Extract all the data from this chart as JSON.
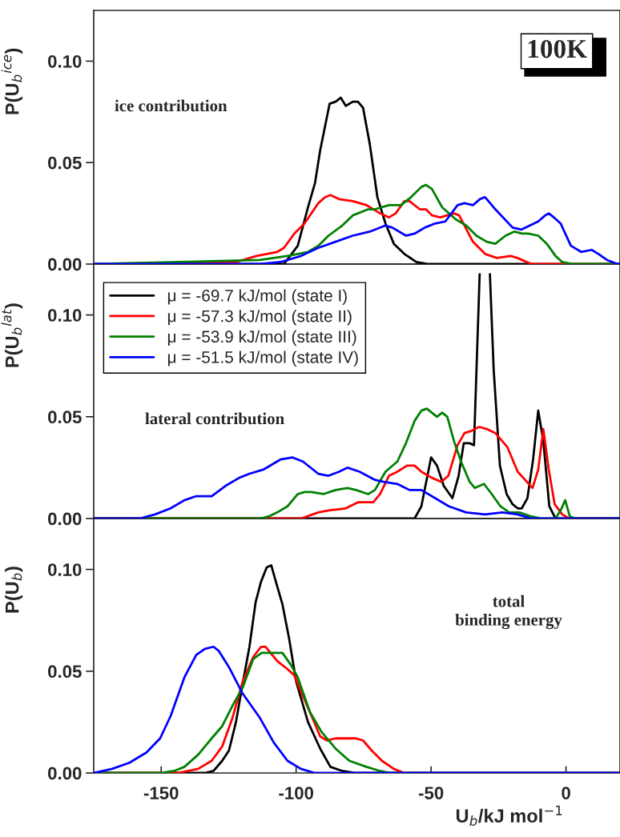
{
  "chart_data": [
    {
      "type": "line",
      "title": "100K",
      "ylabel": "P(U$_{b}$$^{ice}$)",
      "annotations": [
        "ice contribution"
      ],
      "legend": false,
      "tick_labels": "y",
      "xlim": [
        -175,
        20
      ],
      "ylim": [
        0,
        0.125
      ],
      "yticks": [
        {
          "value": 0,
          "label": "0.00"
        },
        {
          "value": 0.05,
          "label": "0.05"
        },
        {
          "value": 0.1,
          "label": "0.10"
        }
      ],
      "series": [
        {
          "color": "#000000",
          "x": [
            -175,
            -110,
            -104.5,
            -99.4,
            -95.6,
            -93.0,
            -91.1,
            -87.6,
            -85.4,
            -83.5,
            -81.6,
            -79.0,
            -77.1,
            -75.2,
            -72.7,
            -69.9,
            -66.9,
            -63.8,
            -59.9,
            -55.5,
            -51.0,
            -39.6,
            20
          ],
          "values": [
            0,
            0,
            0.0,
            0.009,
            0.028,
            0.04,
            0.056,
            0.079,
            0.08,
            0.082,
            0.078,
            0.08,
            0.08,
            0.077,
            0.059,
            0.033,
            0.02,
            0.01,
            0.005,
            0.001,
            0.0,
            0,
            0
          ]
        },
        {
          "color": "#ff0000",
          "x": [
            -175,
            -122.3,
            -114.7,
            -107.0,
            -104.5,
            -100.7,
            -96.9,
            -91.8,
            -89.2,
            -87.3,
            -84.1,
            -79.0,
            -73.9,
            -68.9,
            -65.6,
            -63.1,
            -59.9,
            -58.0,
            -54.2,
            -51.9,
            -49.7,
            -46.6,
            -41.5,
            -39.6,
            -34.5,
            -30.0,
            -25.6,
            -20.5,
            -18.0,
            -12.8,
            -7.7,
            20
          ],
          "values": [
            0,
            0.001,
            0.004,
            0.006,
            0.008,
            0.015,
            0.02,
            0.03,
            0.033,
            0.034,
            0.032,
            0.031,
            0.029,
            0.025,
            0.023,
            0.025,
            0.031,
            0.031,
            0.027,
            0.027,
            0.024,
            0.023,
            0.025,
            0.024,
            0.011,
            0.005,
            0.003,
            0.004,
            0.003,
            0,
            0,
            0
          ]
        },
        {
          "color": "#008000",
          "x": [
            -175,
            -113.4,
            -103.2,
            -95.6,
            -91.8,
            -88.0,
            -82.9,
            -79.0,
            -73.3,
            -70.8,
            -65.6,
            -61.2,
            -57.4,
            -53.6,
            -51.9,
            -49.7,
            -45.9,
            -40.8,
            -37.0,
            -33.2,
            -29.4,
            -26.2,
            -22.4,
            -19.2,
            -16.3,
            -14.1,
            -10.3,
            -7.1,
            -3.9,
            -1.4,
            2.5,
            20
          ],
          "values": [
            0,
            0.002,
            0.004,
            0.006,
            0.009,
            0.014,
            0.019,
            0.024,
            0.027,
            0.027,
            0.029,
            0.029,
            0.033,
            0.038,
            0.039,
            0.037,
            0.028,
            0.022,
            0.019,
            0.014,
            0.011,
            0.01,
            0.014,
            0.016,
            0.015,
            0.015,
            0.014,
            0.01,
            0.004,
            0.001,
            0,
            0
          ]
        },
        {
          "color": "#0000ff",
          "x": [
            -175,
            -113.4,
            -105.8,
            -98.2,
            -91.8,
            -85.4,
            -79.0,
            -72.7,
            -66.9,
            -64.4,
            -59.3,
            -56.1,
            -52.3,
            -48.5,
            -44.7,
            -40.2,
            -37.6,
            -34.5,
            -31.9,
            -30.0,
            -26.2,
            -19.8,
            -16.6,
            -10.3,
            -7.7,
            -6.4,
            -4.5,
            -2.0,
            1.8,
            5.6,
            9.5,
            12.0,
            15.2,
            19.0,
            20
          ],
          "values": [
            0,
            0,
            0.001,
            0.004,
            0.008,
            0.011,
            0.014,
            0.016,
            0.019,
            0.018,
            0.014,
            0.015,
            0.018,
            0.02,
            0.021,
            0.029,
            0.03,
            0.029,
            0.032,
            0.033,
            0.027,
            0.018,
            0.017,
            0.021,
            0.024,
            0.025,
            0.023,
            0.02,
            0.009,
            0.006,
            0.007,
            0.005,
            0.002,
            0,
            0
          ]
        }
      ]
    },
    {
      "type": "line",
      "ylabel": "P(U$_{b}$$^{lat}$)",
      "annotations": [
        "lateral contribution"
      ],
      "legend": "top left",
      "tick_labels": "y",
      "xlim": [
        -175,
        20
      ],
      "ylim": [
        0,
        0.125
      ],
      "yticks": [
        {
          "value": 0,
          "label": "0.00"
        },
        {
          "value": 0.05,
          "label": "0.05"
        },
        {
          "value": 0.1,
          "label": "0.10"
        }
      ],
      "series": [
        {
          "name": "μ = -69.7 kJ/mol (state I)",
          "color": "#000000",
          "x": [
            -175,
            -56.1,
            -53.6,
            -50.0,
            -47.8,
            -45.3,
            -42.1,
            -39.8,
            -37.9,
            -35.7,
            -34.1,
            -32.0,
            -30.0,
            -28.2,
            -26.8,
            -24.5,
            -22.0,
            -19.8,
            -17.9,
            -16.4,
            -14.3,
            -12.2,
            -10.3,
            -8.4,
            -6.2,
            -3.9,
            20
          ],
          "values": [
            0,
            0,
            0.006,
            0.03,
            0.026,
            0.016,
            0.01,
            0.021,
            0.037,
            0.037,
            0.036,
            0.12,
            null,
            0.12,
            0.073,
            0.026,
            0.012,
            0.007,
            0.005,
            0.005,
            0.01,
            0.029,
            0.053,
            0.038,
            0.006,
            0,
            0
          ]
        },
        {
          "name": "μ = -57.3 kJ/mol (state II)",
          "color": "#ff0000",
          "x": [
            -175,
            -98.2,
            -91.8,
            -88.0,
            -81.6,
            -77.1,
            -73.9,
            -71.4,
            -68.9,
            -65.6,
            -62.5,
            -58.9,
            -56.1,
            -53.6,
            -49.7,
            -46.2,
            -43.6,
            -40.2,
            -37.6,
            -35.1,
            -32.2,
            -29.4,
            -26.2,
            -21.7,
            -17.9,
            -12.4,
            -10.3,
            -8.4,
            -6.4,
            -4.2,
            -1.4,
            1.2,
            3.7,
            20
          ],
          "values": [
            0,
            0.0,
            0.003,
            0.004,
            0.005,
            0.008,
            0.008,
            0.008,
            0.012,
            0.021,
            0.023,
            0.026,
            0.026,
            0.023,
            0.02,
            0.018,
            0.021,
            0.036,
            0.042,
            0.043,
            0.045,
            0.044,
            0.042,
            0.035,
            0.023,
            0.015,
            0.024,
            0.044,
            0.024,
            0.007,
            0.002,
            0.0,
            0,
            0
          ]
        },
        {
          "name": "μ = -53.9 kJ/mol (state III)",
          "color": "#008000",
          "x": [
            -175,
            -113.4,
            -110.2,
            -107.0,
            -103.2,
            -99.4,
            -96.9,
            -94.3,
            -89.9,
            -85.4,
            -81.0,
            -77.8,
            -73.3,
            -70.8,
            -66.9,
            -62.5,
            -59.3,
            -56.1,
            -53.6,
            -51.6,
            -47.8,
            -45.9,
            -44.0,
            -41.5,
            -38.9,
            -35.7,
            -33.8,
            -30.4,
            -27.5,
            -24.3,
            -21.1,
            -17.3,
            -12.8,
            -9.0,
            -3.9,
            -2.0,
            -0.3,
            1.4,
            3.7,
            20
          ],
          "values": [
            0,
            0,
            0.001,
            0.003,
            0.006,
            0.012,
            0.013,
            0.013,
            0.012,
            0.014,
            0.015,
            0.014,
            0.012,
            0.014,
            0.023,
            0.028,
            0.037,
            0.048,
            0.053,
            0.054,
            0.05,
            0.052,
            0.05,
            0.038,
            0.028,
            0.018,
            0.015,
            0.017,
            0.012,
            0.006,
            0.003,
            0.003,
            0.001,
            0,
            0,
            0.004,
            0.009,
            0.001,
            0,
            0
          ]
        },
        {
          "name": "μ = -51.5 kJ/mol (state IV)",
          "color": "#0000ff",
          "x": [
            -175,
            -163.1,
            -158.0,
            -152.3,
            -146.5,
            -141.4,
            -137.0,
            -131.3,
            -126.2,
            -121.1,
            -117.3,
            -112.2,
            -105.8,
            -101.3,
            -97.5,
            -91.8,
            -88.0,
            -84.1,
            -81.0,
            -76.5,
            -70.8,
            -67.6,
            -62.5,
            -58.0,
            -53.6,
            -48.5,
            -43.4,
            -37.0,
            -30.0,
            -23.6,
            -17.9,
            -12.8,
            -7.7,
            20
          ],
          "values": [
            0,
            0,
            0.0,
            0.002,
            0.005,
            0.009,
            0.011,
            0.011,
            0.016,
            0.02,
            0.022,
            0.024,
            0.029,
            0.03,
            0.028,
            0.022,
            0.021,
            0.023,
            0.025,
            0.023,
            0.019,
            0.018,
            0.017,
            0.014,
            0.014,
            0.01,
            0.006,
            0.003,
            0.002,
            0.003,
            0.002,
            0.0,
            0,
            0
          ]
        }
      ]
    },
    {
      "type": "line",
      "xlabel": "U$_{b}$/kJ mol$^{−1}$",
      "ylabel": "P(U$_{b}$)",
      "annotations": [
        "total\nbinding energy"
      ],
      "legend": false,
      "xlim": [
        -175,
        20
      ],
      "xticks": [
        -150,
        -100,
        -50,
        0
      ],
      "ylim": [
        0,
        0.125
      ],
      "yticks": [
        {
          "value": 0,
          "label": "0.00"
        },
        {
          "value": 0.05,
          "label": "0.05"
        },
        {
          "value": 0.1,
          "label": "0.10"
        }
      ],
      "series": [
        {
          "color": "#000000",
          "x": [
            -175,
            -133.8,
            -130.6,
            -127.4,
            -124.9,
            -122.3,
            -119.8,
            -117.3,
            -115.0,
            -113.0,
            -110.9,
            -109.2,
            -107.3,
            -105.1,
            -102.6,
            -100.0,
            -95.6,
            -91.1,
            -87.3,
            -82.9,
            -77.8,
            20
          ],
          "values": [
            0,
            0,
            0.001,
            0.006,
            0.011,
            0.025,
            0.044,
            0.062,
            0.084,
            0.094,
            0.101,
            0.102,
            0.093,
            0.083,
            0.066,
            0.045,
            0.025,
            0.012,
            0.003,
            0.001,
            0,
            0
          ]
        },
        {
          "color": "#ff0000",
          "x": [
            -175,
            -144.0,
            -136.3,
            -131.3,
            -127.4,
            -123.6,
            -119.8,
            -115.9,
            -113.0,
            -111.3,
            -107.0,
            -103.2,
            -100.7,
            -98.2,
            -94.3,
            -91.1,
            -88.6,
            -85.4,
            -77.8,
            -75.2,
            -72.0,
            -68.2,
            -63.8,
            -59.9,
            20
          ],
          "values": [
            0,
            0,
            0.002,
            0.006,
            0.013,
            0.027,
            0.045,
            0.057,
            0.062,
            0.062,
            0.055,
            0.051,
            0.048,
            0.04,
            0.028,
            0.018,
            0.016,
            0.017,
            0.017,
            0.016,
            0.011,
            0.006,
            0.002,
            0,
            0
          ]
        },
        {
          "color": "#008000",
          "x": [
            -175,
            -150.4,
            -145.2,
            -141.4,
            -136.3,
            -131.3,
            -127.4,
            -123.6,
            -119.8,
            -115.9,
            -112.8,
            -109.6,
            -107.0,
            -105.1,
            -101.9,
            -99.4,
            -94.9,
            -90.5,
            -85.4,
            -80.3,
            -73.9,
            -68.9,
            -65.0,
            20
          ],
          "values": [
            0,
            0,
            0.001,
            0.003,
            0.009,
            0.017,
            0.023,
            0.033,
            0.042,
            0.056,
            0.059,
            0.059,
            0.059,
            0.059,
            0.053,
            0.047,
            0.03,
            0.02,
            0.012,
            0.006,
            0.003,
            0.001,
            0,
            0
          ]
        },
        {
          "color": "#0000ff",
          "x": [
            -175,
            -168.2,
            -161.8,
            -155.5,
            -150.4,
            -146.5,
            -141.4,
            -137.0,
            -133.8,
            -130.6,
            -128.7,
            -124.9,
            -119.8,
            -113.4,
            -108.3,
            -103.2,
            -98.2,
            -93.1,
            -88.0,
            20
          ],
          "values": [
            0,
            0.002,
            0.005,
            0.01,
            0.017,
            0.028,
            0.047,
            0.058,
            0.061,
            0.062,
            0.06,
            0.052,
            0.039,
            0.027,
            0.015,
            0.006,
            0.002,
            0.0,
            0,
            0
          ]
        }
      ]
    }
  ]
}
